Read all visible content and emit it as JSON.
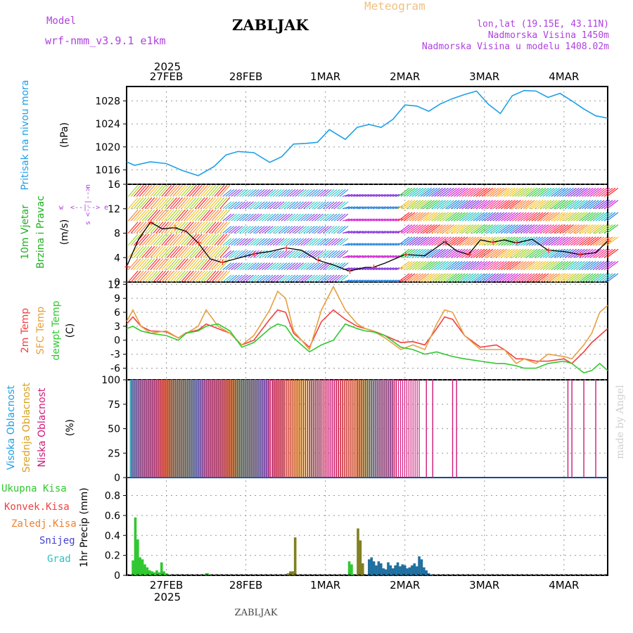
{
  "header": {
    "model_label": "Model",
    "model_name": "wrf-nmm_v3.9.1 e1km",
    "title": "ZABLJAK",
    "meteogram": "Meteogram",
    "coords": "lon,lat (19.15E, 43.11N)",
    "elevation": "Nadmorska Visina 1450m",
    "model_elevation": "Nadmorska Visina u modelu 1408.02m"
  },
  "footer": {
    "station": "ZABLJAK",
    "watermark": "made by Angel"
  },
  "colors": {
    "pressure": "#1ea0e6",
    "temp2m": "#f04040",
    "sfc": "#e6a040",
    "dewpt": "#30c830",
    "high_cloud": "#1ea0e6",
    "mid_cloud": "#d8a020",
    "low_cloud": "#d01878",
    "total_precip": "#30c830",
    "convective": "#f04040",
    "freezing": "#f08030",
    "snow": "#4040d0",
    "hail": "#30c0c0",
    "wind_label": "#20b020",
    "compass": "#b040e0"
  },
  "time_axis": {
    "year": "2025",
    "days": [
      {
        "label": "27FEB",
        "t": 0.5
      },
      {
        "label": "28FEB",
        "t": 1.5
      },
      {
        "label": "1MAR",
        "t": 2.5
      },
      {
        "label": "2MAR",
        "t": 3.5
      },
      {
        "label": "3MAR",
        "t": 4.5
      },
      {
        "label": "4MAR",
        "t": 5.5
      }
    ],
    "range": [
      0,
      6.05
    ]
  },
  "panels": {
    "pressure": {
      "label": "Pritisak na nivou mora",
      "unit": "(hPa)"
    },
    "wind": {
      "label1": "10m Vjetar",
      "label2": "Brzina i Pravac",
      "unit": "(m/s)",
      "compass": [
        "w",
        "<--|-->",
        "e",
        "s",
        "<--|-->",
        "n"
      ]
    },
    "temp": {
      "label1": "2m Temp",
      "label2": "SFC Temp",
      "label3": "dewpt Temp",
      "unit": "(C)"
    },
    "cloud": {
      "label1": "Visoka Oblacnost",
      "label2": "Srednja Oblacnost",
      "label3": "Niska Oblacnost",
      "unit": "(%)"
    },
    "precip": {
      "axis_label": "1hr Precip (mm)"
    }
  },
  "legend_precip": [
    "Ukupna Kisa",
    "Konvek.Kisa",
    "Zaledj.Kisa",
    "Snijeg",
    "Grad"
  ],
  "chart_data": [
    {
      "type": "line",
      "title": "Pritisak na nivou mora",
      "ylabel": "(hPa)",
      "ylim": [
        1013.5,
        1030.5
      ],
      "yticks": [
        1016,
        1020,
        1024,
        1028
      ],
      "grid": true,
      "series": [
        {
          "name": "Pritisak na nivou mora",
          "x": [
            0,
            0.1,
            0.3,
            0.5,
            0.7,
            0.9,
            1.1,
            1.25,
            1.4,
            1.6,
            1.8,
            1.95,
            2.1,
            2.25,
            2.4,
            2.55,
            2.75,
            2.9,
            3.05,
            3.2,
            3.35,
            3.5,
            3.65,
            3.8,
            3.95,
            4.1,
            4.25,
            4.4,
            4.55,
            4.7,
            4.85,
            5.0,
            5.15,
            5.3,
            5.45,
            5.6,
            5.75,
            5.9,
            6.05
          ],
          "y": [
            1017.4,
            1016.8,
            1017.4,
            1017.1,
            1015.9,
            1015.0,
            1016.6,
            1018.6,
            1019.2,
            1019.0,
            1017.3,
            1018.3,
            1020.5,
            1020.6,
            1020.8,
            1023.0,
            1021.3,
            1023.4,
            1023.9,
            1023.4,
            1024.8,
            1027.3,
            1027.1,
            1026.2,
            1027.5,
            1028.4,
            1029.1,
            1029.7,
            1027.4,
            1025.8,
            1028.9,
            1029.8,
            1029.7,
            1028.6,
            1029.3,
            1028.0,
            1026.6,
            1025.4,
            1025.0
          ]
        }
      ]
    },
    {
      "type": "line",
      "title": "10m Vjetar Brzina i Pravac",
      "ylabel": "(m/s)",
      "ylim": [
        0,
        16
      ],
      "yticks": [
        0,
        4,
        8,
        12,
        16
      ],
      "grid": true,
      "series": [
        {
          "name": "10m Vjetar",
          "x": [
            0,
            0.15,
            0.3,
            0.45,
            0.6,
            0.75,
            0.9,
            1.05,
            1.2,
            1.4,
            1.6,
            1.8,
            2.0,
            2.2,
            2.4,
            2.6,
            2.8,
            3.0,
            3.1,
            3.25,
            3.5,
            3.75,
            4.0,
            4.15,
            4.3,
            4.45,
            4.6,
            4.75,
            4.9,
            5.1,
            5.3,
            5.5,
            5.7,
            5.9,
            6.05
          ],
          "y": [
            2.5,
            7.0,
            9.8,
            8.7,
            8.9,
            8.3,
            6.4,
            3.8,
            3.2,
            3.9,
            4.6,
            5.0,
            5.6,
            5.2,
            3.6,
            2.8,
            1.8,
            2.4,
            2.4,
            3.1,
            4.5,
            4.3,
            6.6,
            5.1,
            4.5,
            6.9,
            6.5,
            6.9,
            6.4,
            7.0,
            5.2,
            5.0,
            4.5,
            4.8,
            6.7
          ]
        }
      ],
      "markers": {
        "type": "barbs",
        "note": "wind barbs at heights 0,2,4,6,8,10,12,14"
      }
    },
    {
      "type": "line",
      "title": "Temperatures",
      "ylabel": "(C)",
      "ylim": [
        -8.5,
        12.5
      ],
      "yticks": [
        -6,
        -3,
        0,
        3,
        6,
        9,
        12
      ],
      "grid": true,
      "x": [
        0,
        0.08,
        0.18,
        0.3,
        0.5,
        0.65,
        0.75,
        0.9,
        1.0,
        1.15,
        1.3,
        1.45,
        1.6,
        1.8,
        1.9,
        2.0,
        2.1,
        2.2,
        2.3,
        2.45,
        2.6,
        2.75,
        2.9,
        3.0,
        3.1,
        3.25,
        3.45,
        3.6,
        3.75,
        3.9,
        4.0,
        4.1,
        4.25,
        4.45,
        4.65,
        4.75,
        4.9,
        5.0,
        5.15,
        5.3,
        5.5,
        5.6,
        5.75,
        5.85,
        5.95,
        6.05
      ],
      "series": [
        {
          "name": "2m Temp",
          "y": [
            3.5,
            5.0,
            3.0,
            2.0,
            1.8,
            0.5,
            1.6,
            2.2,
            3.5,
            2.5,
            1.5,
            -1.0,
            0.0,
            4.5,
            6.5,
            6.0,
            1.5,
            0.0,
            -1.5,
            4.0,
            6.5,
            4.5,
            3.0,
            2.5,
            2.0,
            1.0,
            -0.5,
            -0.3,
            -1.0,
            2.5,
            5.0,
            4.5,
            1.0,
            -1.5,
            -1.0,
            -2.0,
            -4.0,
            -4.0,
            -4.5,
            -4.5,
            -4.0,
            -5.0,
            -2.5,
            -0.5,
            1.0,
            2.5
          ]
        },
        {
          "name": "SFC Temp",
          "y": [
            4.0,
            6.5,
            3.0,
            1.5,
            2.0,
            0.5,
            1.5,
            3.0,
            6.5,
            3.0,
            1.5,
            -1.0,
            1.0,
            6.5,
            10.5,
            9.0,
            2.0,
            0.0,
            -2.0,
            6.5,
            11.5,
            6.5,
            3.5,
            2.5,
            2.0,
            0.5,
            -2.0,
            -1.0,
            -2.0,
            3.5,
            6.5,
            6.0,
            1.0,
            -2.0,
            -2.0,
            -2.0,
            -5.0,
            -4.0,
            -5.0,
            -3.0,
            -3.5,
            -4.0,
            -1.0,
            1.5,
            6.0,
            7.5
          ]
        },
        {
          "name": "dewpt Temp",
          "y": [
            2.5,
            3.0,
            2.0,
            1.5,
            1.0,
            0.0,
            1.5,
            2.0,
            3.0,
            3.5,
            2.0,
            -1.5,
            -0.5,
            2.5,
            3.5,
            3.0,
            0.5,
            -1.0,
            -2.5,
            -1.0,
            0.0,
            3.5,
            2.5,
            2.0,
            1.8,
            1.0,
            -1.5,
            -2.0,
            -3.0,
            -2.5,
            -3.0,
            -3.5,
            -4.0,
            -4.5,
            -5.0,
            -5.0,
            -5.5,
            -6.0,
            -6.0,
            -5.0,
            -4.5,
            -5.0,
            -7.0,
            -6.5,
            -5.0,
            -6.5
          ]
        }
      ]
    },
    {
      "type": "bar",
      "title": "Oblacnost",
      "ylabel": "(%)",
      "ylim": [
        0,
        100
      ],
      "yticks": [
        0,
        25,
        50,
        75,
        100
      ],
      "grid": true,
      "series": [
        {
          "name": "Visoka Oblacnost",
          "ranges": [
            [
              0.05,
              1.8
            ],
            [
              1.85,
              2.0
            ],
            [
              2.3,
              2.45
            ],
            [
              2.9,
              3.35
            ]
          ]
        },
        {
          "name": "Srednja Oblacnost",
          "ranges": [
            [
              0.05,
              3.4
            ]
          ]
        },
        {
          "name": "Niska Oblacnost",
          "ranges": [
            [
              0.05,
              3.7
            ]
          ],
          "extra": [
            3.77,
            3.85,
            4.1,
            4.15,
            5.55,
            5.6,
            5.75,
            5.9
          ]
        }
      ]
    },
    {
      "type": "bar",
      "title": "1hr Precip",
      "ylabel": "1hr Precip (mm)",
      "ylim": [
        0,
        0.98
      ],
      "yticks": [
        0,
        0.2,
        0.4,
        0.6,
        0.8
      ],
      "grid": true,
      "series": [
        {
          "name": "Ukupna Kisa",
          "x": [
            0.08,
            0.11,
            0.14,
            0.17,
            0.2,
            0.23,
            0.26,
            0.29,
            0.32,
            0.35,
            0.38,
            0.41,
            0.44,
            0.47,
            0.5,
            0.53,
            1.0,
            1.02,
            2.8,
            2.83
          ],
          "y": [
            0.15,
            0.58,
            0.36,
            0.18,
            0.16,
            0.11,
            0.08,
            0.05,
            0.04,
            0.03,
            0.05,
            0.03,
            0.13,
            0.04,
            0.02,
            0.01,
            0.02,
            0.02,
            0.14,
            0.11
          ]
        },
        {
          "name": "Zaledj.Kisa",
          "x": [
            2.03,
            2.06,
            2.09,
            2.12,
            2.91,
            2.94,
            2.97
          ],
          "y": [
            0.02,
            0.04,
            0.04,
            0.38,
            0.47,
            0.35,
            0.12
          ]
        },
        {
          "name": "Snijeg",
          "x": [
            3.05,
            3.08,
            3.11,
            3.14,
            3.17,
            3.2,
            3.23,
            3.26,
            3.29,
            3.32,
            3.35,
            3.38,
            3.41,
            3.44,
            3.47,
            3.5,
            3.53,
            3.56,
            3.59,
            3.62,
            3.65,
            3.68,
            3.71,
            3.74,
            3.77,
            3.8,
            3.83
          ],
          "y": [
            0.16,
            0.18,
            0.14,
            0.1,
            0.14,
            0.12,
            0.07,
            0.06,
            0.13,
            0.1,
            0.07,
            0.1,
            0.13,
            0.09,
            0.11,
            0.1,
            0.07,
            0.08,
            0.1,
            0.12,
            0.09,
            0.19,
            0.16,
            0.08,
            0.05,
            0.02,
            0.01
          ]
        }
      ]
    }
  ]
}
